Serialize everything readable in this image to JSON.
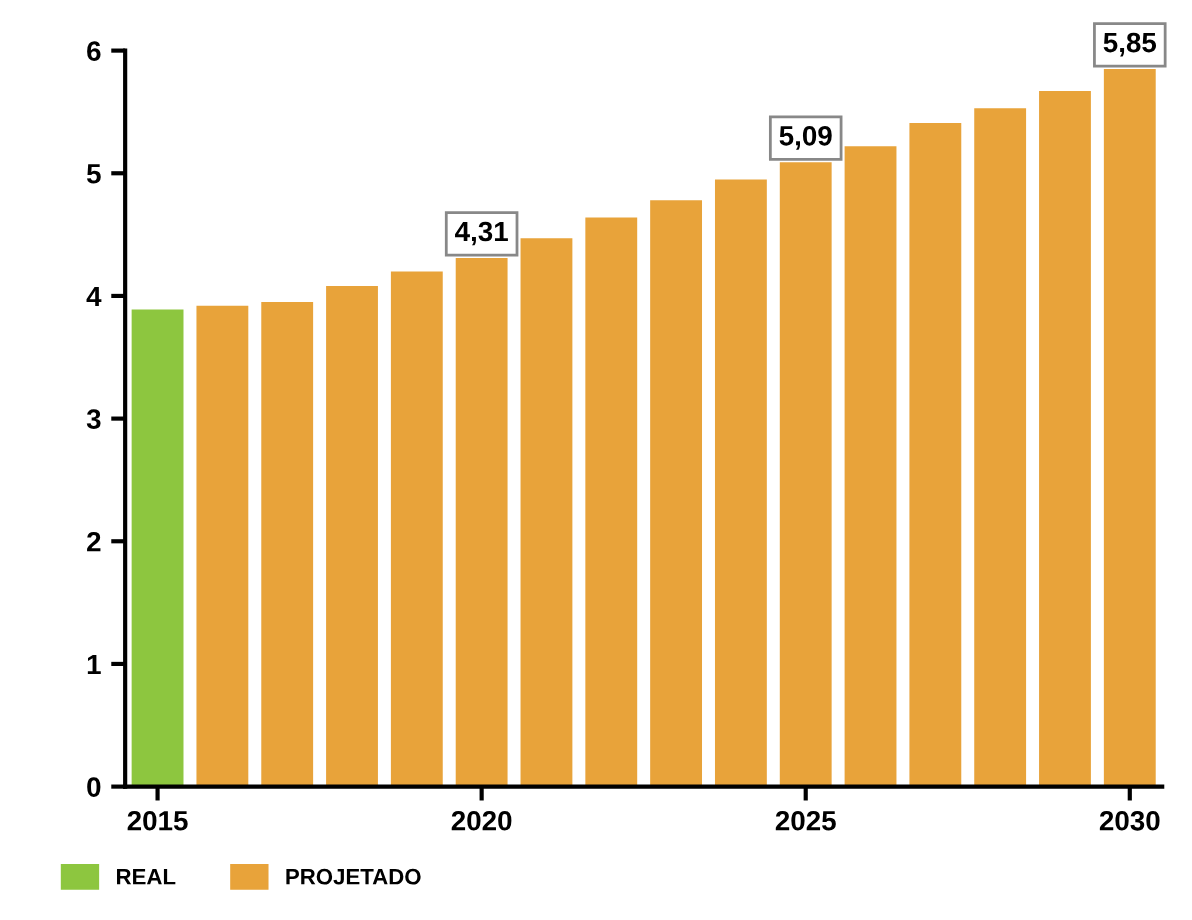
{
  "chart_data": {
    "type": "bar",
    "x": [
      2015,
      2016,
      2017,
      2018,
      2019,
      2020,
      2021,
      2022,
      2023,
      2024,
      2025,
      2026,
      2027,
      2028,
      2029,
      2030
    ],
    "series": [
      {
        "name": "REAL",
        "color": "#8dc63f",
        "values": [
          3.89,
          null,
          null,
          null,
          null,
          null,
          null,
          null,
          null,
          null,
          null,
          null,
          null,
          null,
          null,
          null
        ]
      },
      {
        "name": "PROJETADO",
        "color": "#e8a33a",
        "values": [
          null,
          3.92,
          3.95,
          4.08,
          4.2,
          4.31,
          4.47,
          4.64,
          4.78,
          4.95,
          5.09,
          5.22,
          5.41,
          5.53,
          5.67,
          5.85
        ],
        "value_labels": [
          null,
          null,
          null,
          null,
          null,
          "4,31",
          null,
          null,
          null,
          null,
          "5,09",
          null,
          null,
          null,
          null,
          "5,85"
        ]
      }
    ],
    "xlim": [
      2014.5,
      2030.5
    ],
    "xticks": [
      2015,
      2020,
      2025,
      2030
    ],
    "ylim": [
      0,
      6
    ],
    "yticks": [
      0,
      1,
      2,
      3,
      4,
      5,
      6
    ],
    "grid": false,
    "legend": "bottom left"
  }
}
